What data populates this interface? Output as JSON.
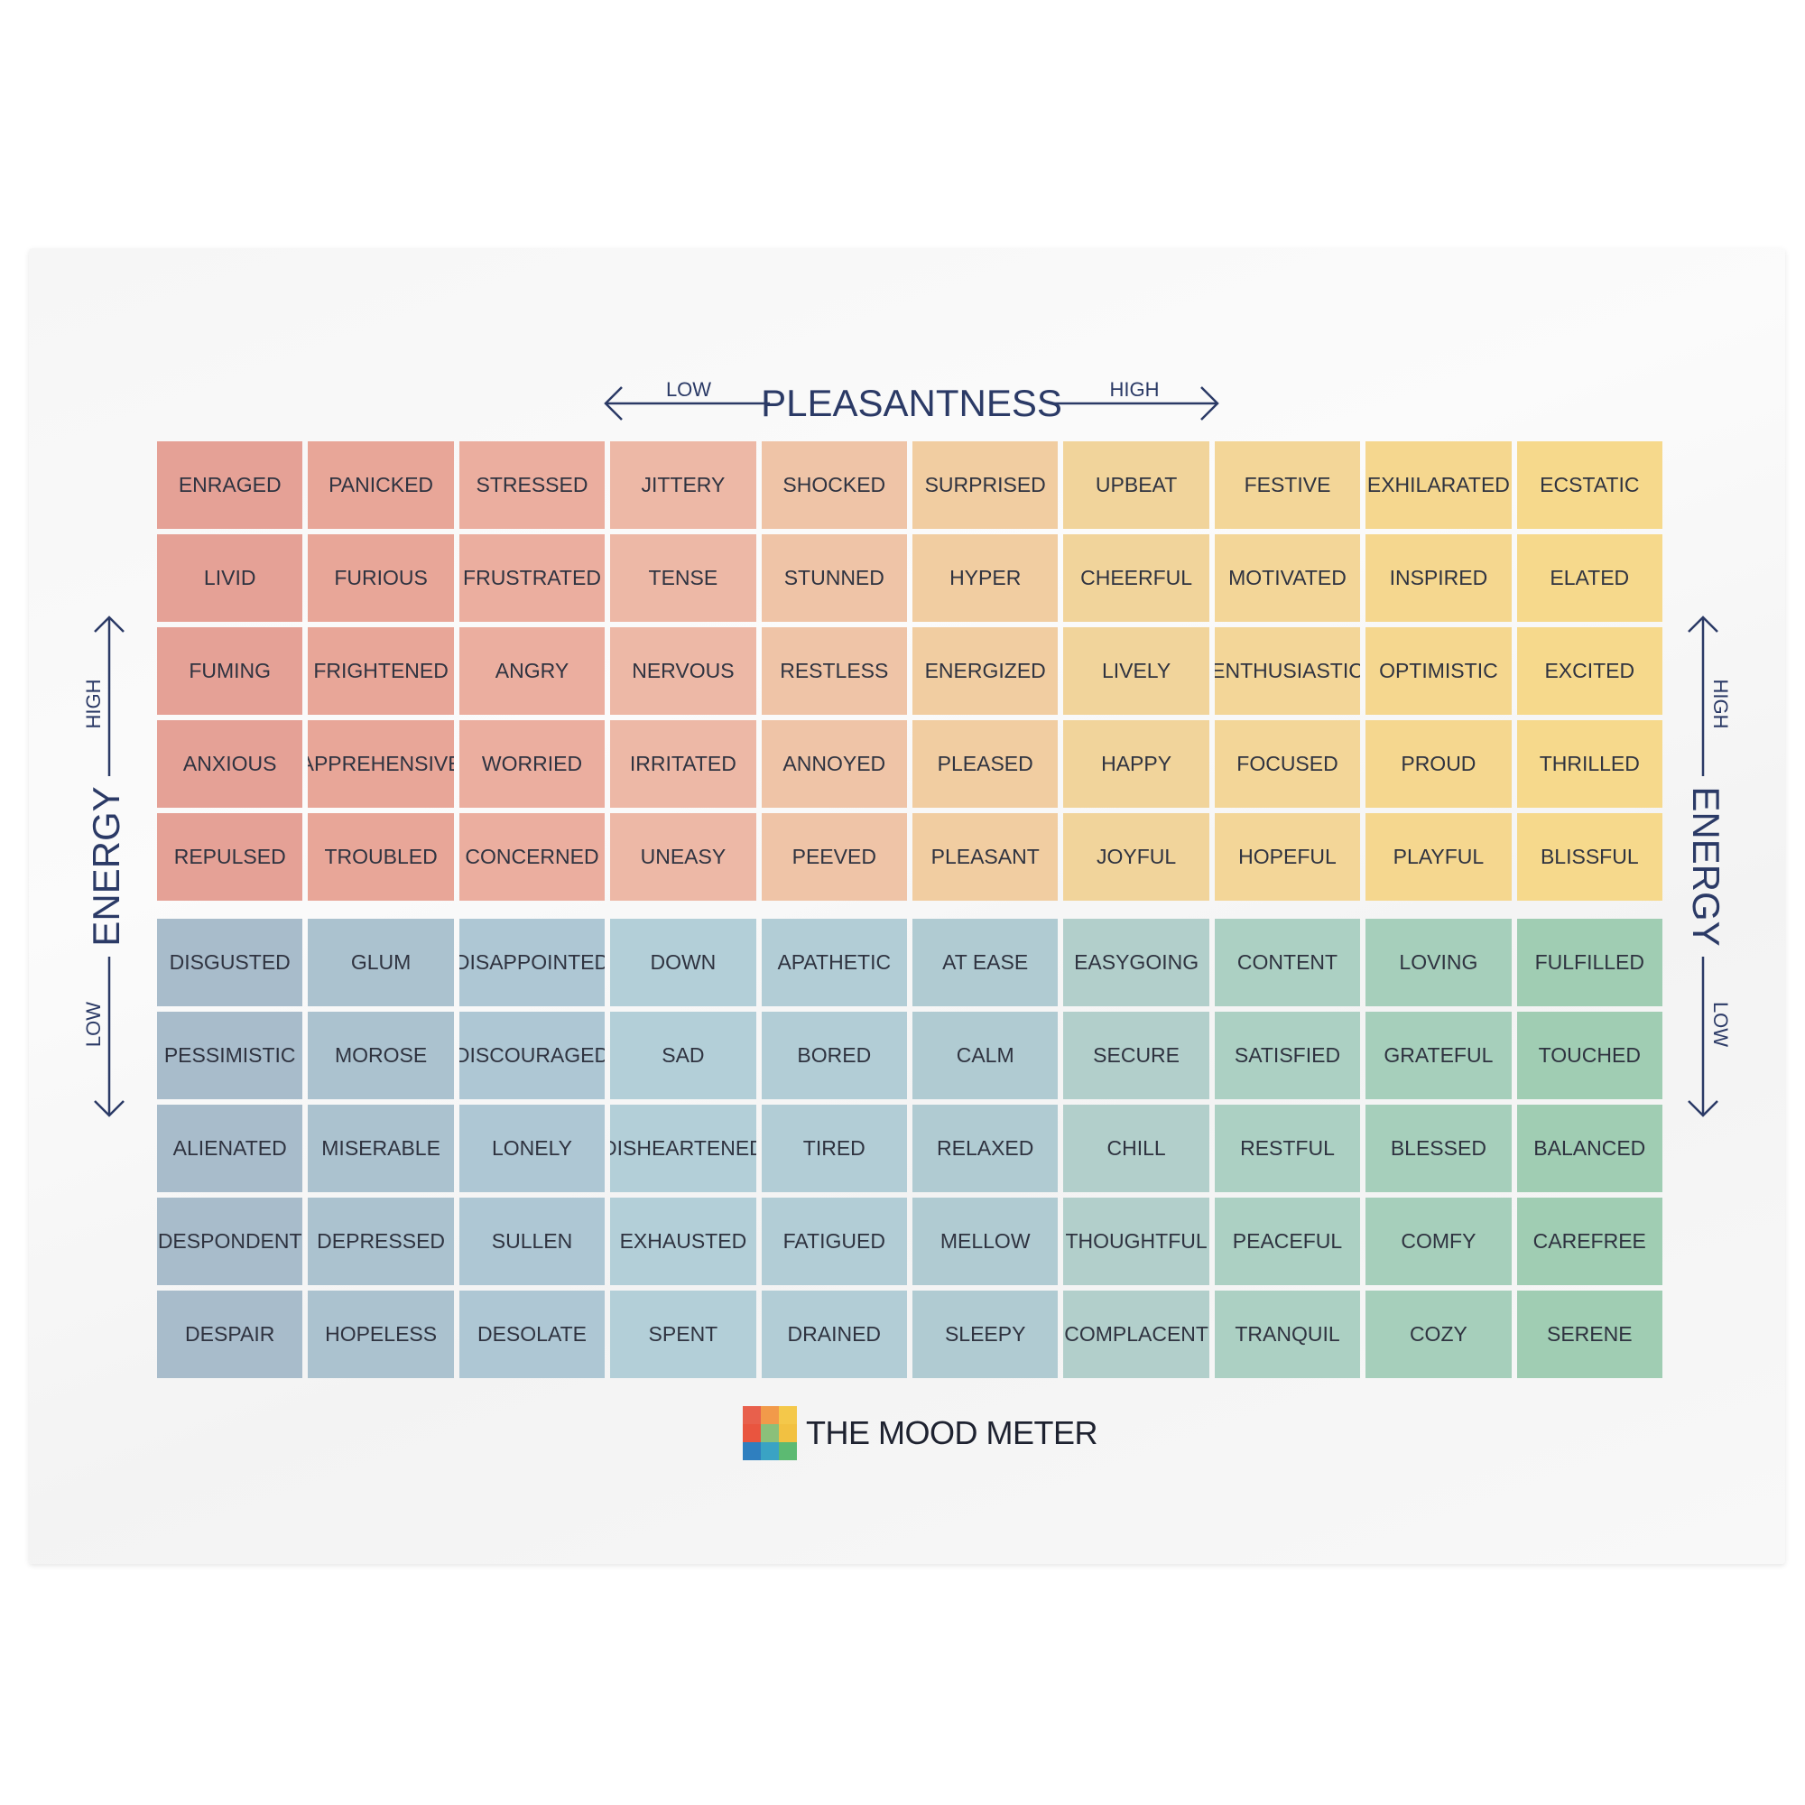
{
  "pleasantness_axis": {
    "title": "PLEASANTNESS",
    "low": "LOW",
    "high": "HIGH"
  },
  "energy_axis": {
    "title": "ENERGY",
    "low": "LOW",
    "high": "HIGH"
  },
  "grid": {
    "rows": [
      [
        "ENRAGED",
        "PANICKED",
        "STRESSED",
        "JITTERY",
        "SHOCKED",
        "SURPRISED",
        "UPBEAT",
        "FESTIVE",
        "EXHILARATED",
        "ECSTATIC"
      ],
      [
        "LIVID",
        "FURIOUS",
        "FRUSTRATED",
        "TENSE",
        "STUNNED",
        "HYPER",
        "CHEERFUL",
        "MOTIVATED",
        "INSPIRED",
        "ELATED"
      ],
      [
        "FUMING",
        "FRIGHTENED",
        "ANGRY",
        "NERVOUS",
        "RESTLESS",
        "ENERGIZED",
        "LIVELY",
        "ENTHUSIASTIC",
        "OPTIMISTIC",
        "EXCITED"
      ],
      [
        "ANXIOUS",
        "APPREHENSIVE",
        "WORRIED",
        "IRRITATED",
        "ANNOYED",
        "PLEASED",
        "HAPPY",
        "FOCUSED",
        "PROUD",
        "THRILLED"
      ],
      [
        "REPULSED",
        "TROUBLED",
        "CONCERNED",
        "UNEASY",
        "PEEVED",
        "PLEASANT",
        "JOYFUL",
        "HOPEFUL",
        "PLAYFUL",
        "BLISSFUL"
      ],
      [
        "DISGUSTED",
        "GLUM",
        "DISAPPOINTED",
        "DOWN",
        "APATHETIC",
        "AT EASE",
        "EASYGOING",
        "CONTENT",
        "LOVING",
        "FULFILLED"
      ],
      [
        "PESSIMISTIC",
        "MOROSE",
        "DISCOURAGED",
        "SAD",
        "BORED",
        "CALM",
        "SECURE",
        "SATISFIED",
        "GRATEFUL",
        "TOUCHED"
      ],
      [
        "ALIENATED",
        "MISERABLE",
        "LONELY",
        "DISHEARTENED",
        "TIRED",
        "RELAXED",
        "CHILL",
        "RESTFUL",
        "BLESSED",
        "BALANCED"
      ],
      [
        "DESPONDENT",
        "DEPRESSED",
        "SULLEN",
        "EXHAUSTED",
        "FATIGUED",
        "MELLOW",
        "THOUGHTFUL",
        "PEACEFUL",
        "COMFY",
        "CAREFREE"
      ],
      [
        "DESPAIR",
        "HOPELESS",
        "DESOLATE",
        "SPENT",
        "DRAINED",
        "SLEEPY",
        "COMPLACENT",
        "TRANQUIL",
        "COZY",
        "SERENE"
      ]
    ],
    "top_colors": [
      "#e5a196",
      "#e8a698",
      "#ebae9f",
      "#edb8a6",
      "#efc4a7",
      "#f1cda1",
      "#f1d49b",
      "#f3d698",
      "#f5d78f",
      "#f6d98c"
    ],
    "bottom_colors": [
      "#a8bccb",
      "#abc2cf",
      "#aec7d4",
      "#b3cfd8",
      "#b2cdd6",
      "#b0cbd2",
      "#b2cfcb",
      "#acd0c3",
      "#a6cfbb",
      "#a0cdb3"
    ]
  },
  "logo": {
    "text": "THE MOOD METER",
    "mark_colors": [
      "#e8604c",
      "#f29a4a",
      "#f4c84a",
      "#e9553f",
      "#8bc07a",
      "#f2c141",
      "#2f7fbf",
      "#3aa3c4",
      "#5cba72"
    ]
  }
}
